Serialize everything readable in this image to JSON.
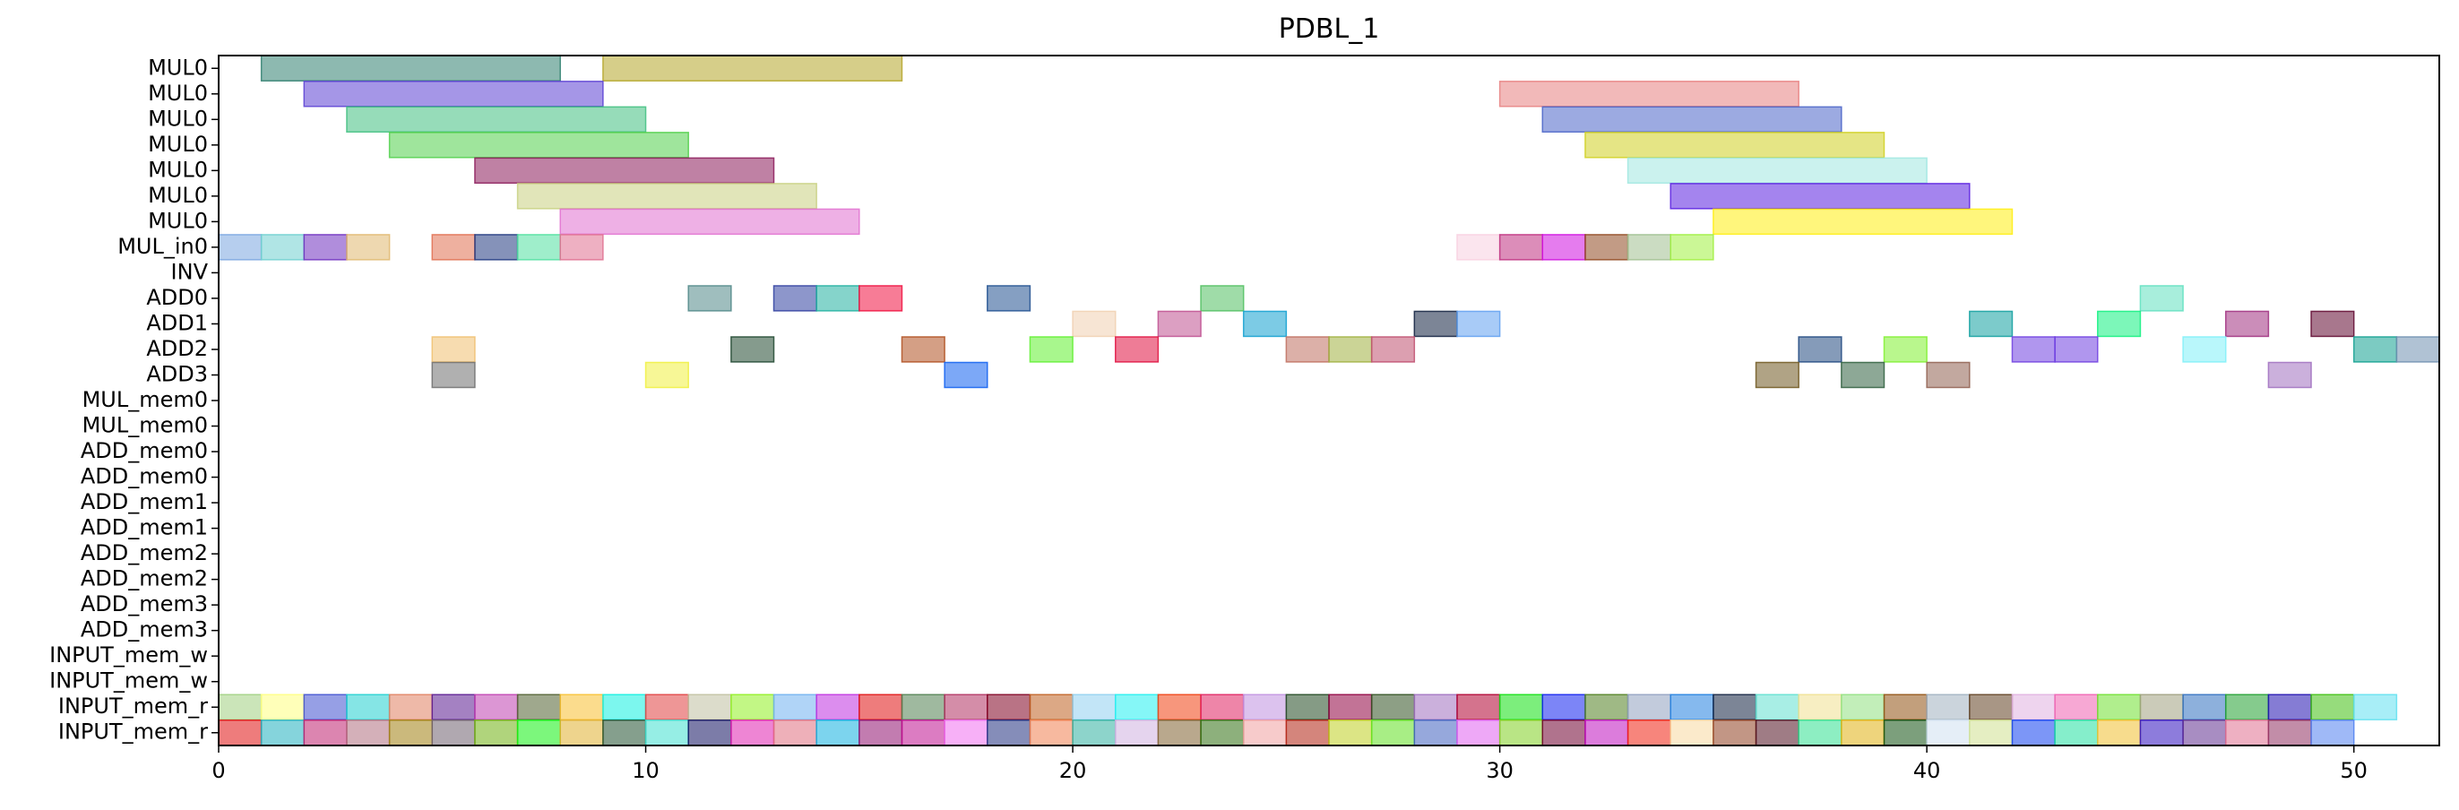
{
  "chart_data": {
    "type": "gantt",
    "title": "PDBL_1",
    "xlabel": "",
    "ylabel": "",
    "xlim": [
      0,
      52
    ],
    "x_ticks": [
      0,
      10,
      20,
      30,
      40,
      50
    ],
    "grid": false,
    "legend": false,
    "rows": [
      "MUL0",
      "MUL0",
      "MUL0",
      "MUL0",
      "MUL0",
      "MUL0",
      "MUL0",
      "MUL_in0",
      "INV",
      "ADD0",
      "ADD1",
      "ADD2",
      "ADD3",
      "MUL_mem0",
      "MUL_mem0",
      "ADD_mem0",
      "ADD_mem0",
      "ADD_mem1",
      "ADD_mem1",
      "ADD_mem2",
      "ADD_mem2",
      "ADD_mem3",
      "ADD_mem3",
      "INPUT_mem_w",
      "INPUT_mem_w",
      "INPUT_mem_r",
      "INPUT_mem_r"
    ],
    "palette": [
      "#7fb77e",
      "#c9a227",
      "#6a5acd",
      "#3cb371",
      "#e07b7b",
      "#4a69bd",
      "#d4c220",
      "#a4e3dc",
      "#8a2be2",
      "#ffe600",
      "#a0c0e0",
      "#b06bd0",
      "#e8c890",
      "#e08060",
      "#34508a",
      "#60e0b0",
      "#e090a8",
      "#508888",
      "#4a60b0",
      "#40c0b0",
      "#f03060",
      "#2060a0",
      "#f0d8c0",
      "#c070a0",
      "#20a0e0",
      "#203050",
      "#70b0f0",
      "#c08070",
      "#a0b040",
      "#c05070",
      "#80e040",
      "#104030",
      "#b06030",
      "#3080f0",
      "#e01040",
      "#a08040",
      "#50805c",
      "#a08880",
      "#a060c0",
      "#90f0f8",
      "#f0c040",
      "#e060e0"
    ],
    "tasks": [
      {
        "row": 0,
        "start": 1,
        "end": 8,
        "color": "#2f7f6f"
      },
      {
        "row": 0,
        "start": 9,
        "end": 16,
        "color": "#b4a528"
      },
      {
        "row": 1,
        "start": 2,
        "end": 9,
        "color": "#5b3fd3"
      },
      {
        "row": 1,
        "start": 30,
        "end": 37,
        "color": "#e88080"
      },
      {
        "row": 2,
        "start": 3,
        "end": 10,
        "color": "#40bf80"
      },
      {
        "row": 2,
        "start": 31,
        "end": 38,
        "color": "#4a64c8"
      },
      {
        "row": 3,
        "start": 4,
        "end": 11,
        "color": "#50d04a"
      },
      {
        "row": 3,
        "start": 32,
        "end": 39,
        "color": "#d0d020"
      },
      {
        "row": 4,
        "start": 6,
        "end": 13,
        "color": "#8b1a5a"
      },
      {
        "row": 4,
        "start": 33,
        "end": 40,
        "color": "#a0e8e0"
      },
      {
        "row": 5,
        "start": 7,
        "end": 14,
        "color": "#c8d080"
      },
      {
        "row": 5,
        "start": 34,
        "end": 41,
        "color": "#5a1fe0"
      },
      {
        "row": 6,
        "start": 8,
        "end": 15,
        "color": "#e070d0"
      },
      {
        "row": 6,
        "start": 35,
        "end": 42,
        "color": "#ffee10"
      },
      {
        "row": 7,
        "start": 0,
        "end": 1,
        "color": "#7aa6e0"
      },
      {
        "row": 7,
        "start": 1,
        "end": 2,
        "color": "#70d0d0"
      },
      {
        "row": 7,
        "start": 2,
        "end": 3,
        "color": "#7030c0"
      },
      {
        "row": 7,
        "start": 3,
        "end": 4,
        "color": "#e0b870"
      },
      {
        "row": 7,
        "start": 5,
        "end": 6,
        "color": "#e07050"
      },
      {
        "row": 7,
        "start": 6,
        "end": 7,
        "color": "#203880"
      },
      {
        "row": 7,
        "start": 7,
        "end": 8,
        "color": "#50e0a0"
      },
      {
        "row": 7,
        "start": 8,
        "end": 9,
        "color": "#e07090"
      },
      {
        "row": 7,
        "start": 29,
        "end": 30,
        "color": "#f8d0e0"
      },
      {
        "row": 7,
        "start": 30,
        "end": 31,
        "color": "#c03080"
      },
      {
        "row": 7,
        "start": 31,
        "end": 32,
        "color": "#d010e0"
      },
      {
        "row": 7,
        "start": 32,
        "end": 33,
        "color": "#904820"
      },
      {
        "row": 7,
        "start": 33,
        "end": 34,
        "color": "#a0c090"
      },
      {
        "row": 7,
        "start": 34,
        "end": 35,
        "color": "#a0f040"
      },
      {
        "row": 9,
        "start": 11,
        "end": 12,
        "color": "#508888"
      },
      {
        "row": 9,
        "start": 13,
        "end": 14,
        "color": "#3040a0"
      },
      {
        "row": 9,
        "start": 14,
        "end": 15,
        "color": "#20b0a0"
      },
      {
        "row": 9,
        "start": 15,
        "end": 16,
        "color": "#f01040"
      },
      {
        "row": 9,
        "start": 18,
        "end": 19,
        "color": "#205090"
      },
      {
        "row": 9,
        "start": 23,
        "end": 24,
        "color": "#50c060"
      },
      {
        "row": 9,
        "start": 45,
        "end": 46,
        "color": "#60e0c0"
      },
      {
        "row": 10,
        "start": 20,
        "end": 21,
        "color": "#f0d0b0"
      },
      {
        "row": 10,
        "start": 22,
        "end": 23,
        "color": "#c05090"
      },
      {
        "row": 10,
        "start": 24,
        "end": 25,
        "color": "#10a0d0"
      },
      {
        "row": 10,
        "start": 28,
        "end": 29,
        "color": "#102040"
      },
      {
        "row": 10,
        "start": 29,
        "end": 30,
        "color": "#60a0f0"
      },
      {
        "row": 10,
        "start": 41,
        "end": 42,
        "color": "#10a0a0"
      },
      {
        "row": 10,
        "start": 44,
        "end": 45,
        "color": "#10f080"
      },
      {
        "row": 10,
        "start": 47,
        "end": 48,
        "color": "#a03080"
      },
      {
        "row": 10,
        "start": 49,
        "end": 50,
        "color": "#600830"
      },
      {
        "row": 11,
        "start": 5,
        "end": 6,
        "color": "#f0c070"
      },
      {
        "row": 11,
        "start": 12,
        "end": 13,
        "color": "#204830"
      },
      {
        "row": 11,
        "start": 16,
        "end": 17,
        "color": "#b05020"
      },
      {
        "row": 11,
        "start": 19,
        "end": 20,
        "color": "#60f030"
      },
      {
        "row": 11,
        "start": 21,
        "end": 22,
        "color": "#e01040"
      },
      {
        "row": 11,
        "start": 25,
        "end": 26,
        "color": "#c07060"
      },
      {
        "row": 11,
        "start": 26,
        "end": 27,
        "color": "#a0b040"
      },
      {
        "row": 11,
        "start": 27,
        "end": 28,
        "color": "#c05070"
      },
      {
        "row": 11,
        "start": 37,
        "end": 38,
        "color": "#204880"
      },
      {
        "row": 11,
        "start": 39,
        "end": 40,
        "color": "#80f030"
      },
      {
        "row": 11,
        "start": 42,
        "end": 43,
        "color": "#7040e0"
      },
      {
        "row": 11,
        "start": 43,
        "end": 44,
        "color": "#7040e0"
      },
      {
        "row": 11,
        "start": 46,
        "end": 47,
        "color": "#80f0f8"
      },
      {
        "row": 11,
        "start": 50,
        "end": 51,
        "color": "#10a090"
      },
      {
        "row": 11,
        "start": 51,
        "end": 52,
        "color": "#7090b0"
      },
      {
        "row": 12,
        "start": 5,
        "end": 6,
        "color": "#707070"
      },
      {
        "row": 12,
        "start": 10,
        "end": 11,
        "color": "#f0f040"
      },
      {
        "row": 12,
        "start": 17,
        "end": 18,
        "color": "#1060f0"
      },
      {
        "row": 12,
        "start": 36,
        "end": 37,
        "color": "#705820"
      },
      {
        "row": 12,
        "start": 38,
        "end": 39,
        "color": "#306040"
      },
      {
        "row": 12,
        "start": 40,
        "end": 41,
        "color": "#906050"
      },
      {
        "row": 12,
        "start": 48,
        "end": 49,
        "color": "#a070c0"
      },
      {
        "row": 25,
        "start": 0,
        "end": 1,
        "color": "#a0d080"
      },
      {
        "row": 25,
        "start": 1,
        "end": 2,
        "color": "#ffff80"
      },
      {
        "row": 25,
        "start": 2,
        "end": 3,
        "color": "#4050d0"
      },
      {
        "row": 25,
        "start": 3,
        "end": 4,
        "color": "#20d0d0"
      },
      {
        "row": 25,
        "start": 4,
        "end": 5,
        "color": "#e08060"
      },
      {
        "row": 25,
        "start": 5,
        "end": 6,
        "color": "#5a1a90"
      },
      {
        "row": 25,
        "start": 6,
        "end": 7,
        "color": "#c040b0"
      },
      {
        "row": 25,
        "start": 7,
        "end": 8,
        "color": "#506030"
      },
      {
        "row": 25,
        "start": 8,
        "end": 9,
        "color": "#f8c030"
      },
      {
        "row": 25,
        "start": 9,
        "end": 10,
        "color": "#10f0e0"
      },
      {
        "row": 25,
        "start": 10,
        "end": 11,
        "color": "#e04040"
      },
      {
        "row": 25,
        "start": 11,
        "end": 12,
        "color": "#c0c0a0"
      },
      {
        "row": 25,
        "start": 12,
        "end": 13,
        "color": "#90f020"
      },
      {
        "row": 25,
        "start": 13,
        "end": 14,
        "color": "#70b0f0"
      },
      {
        "row": 25,
        "start": 14,
        "end": 15,
        "color": "#c030e0"
      },
      {
        "row": 25,
        "start": 15,
        "end": 16,
        "color": "#e01010"
      },
      {
        "row": 25,
        "start": 16,
        "end": 17,
        "color": "#508050"
      },
      {
        "row": 25,
        "start": 17,
        "end": 18,
        "color": "#b03060"
      },
      {
        "row": 25,
        "start": 18,
        "end": 19,
        "color": "#800020"
      },
      {
        "row": 25,
        "start": 19,
        "end": 20,
        "color": "#c06020"
      },
      {
        "row": 25,
        "start": 20,
        "end": 21,
        "color": "#90d0f0"
      },
      {
        "row": 25,
        "start": 21,
        "end": 22,
        "color": "#20f0f0"
      },
      {
        "row": 25,
        "start": 22,
        "end": 23,
        "color": "#f04010"
      },
      {
        "row": 25,
        "start": 23,
        "end": 24,
        "color": "#e02060"
      },
      {
        "row": 25,
        "start": 24,
        "end": 25,
        "color": "#c090e0"
      },
      {
        "row": 25,
        "start": 25,
        "end": 26,
        "color": "#204820"
      },
      {
        "row": 25,
        "start": 26,
        "end": 27,
        "color": "#900040"
      },
      {
        "row": 25,
        "start": 27,
        "end": 28,
        "color": "#305020"
      },
      {
        "row": 25,
        "start": 28,
        "end": 29,
        "color": "#a070c0"
      },
      {
        "row": 25,
        "start": 29,
        "end": 30,
        "color": "#b00030"
      },
      {
        "row": 25,
        "start": 30,
        "end": 31,
        "color": "#10e010"
      },
      {
        "row": 25,
        "start": 31,
        "end": 32,
        "color": "#1020f0"
      },
      {
        "row": 25,
        "start": 32,
        "end": 33,
        "color": "#508020"
      },
      {
        "row": 25,
        "start": 33,
        "end": 34,
        "color": "#90a0c0"
      },
      {
        "row": 25,
        "start": 34,
        "end": 35,
        "color": "#2080e0"
      },
      {
        "row": 25,
        "start": 35,
        "end": 36,
        "color": "#102040"
      },
      {
        "row": 25,
        "start": 36,
        "end": 37,
        "color": "#60e0d0"
      },
      {
        "row": 25,
        "start": 37,
        "end": 38,
        "color": "#f0e090"
      },
      {
        "row": 25,
        "start": 38,
        "end": 39,
        "color": "#90e080"
      },
      {
        "row": 25,
        "start": 39,
        "end": 40,
        "color": "#905010"
      },
      {
        "row": 25,
        "start": 40,
        "end": 41,
        "color": "#a0b0c0"
      },
      {
        "row": 25,
        "start": 41,
        "end": 42,
        "color": "#604020"
      },
      {
        "row": 25,
        "start": 42,
        "end": 43,
        "color": "#e0b0e0"
      },
      {
        "row": 25,
        "start": 43,
        "end": 44,
        "color": "#f060b0"
      },
      {
        "row": 25,
        "start": 44,
        "end": 45,
        "color": "#70e030"
      },
      {
        "row": 25,
        "start": 45,
        "end": 46,
        "color": "#a0a080"
      },
      {
        "row": 25,
        "start": 46,
        "end": 47,
        "color": "#3070c0"
      },
      {
        "row": 25,
        "start": 47,
        "end": 48,
        "color": "#20a030"
      },
      {
        "row": 25,
        "start": 48,
        "end": 49,
        "color": "#2010b0"
      },
      {
        "row": 25,
        "start": 49,
        "end": 50,
        "color": "#40c010"
      },
      {
        "row": 25,
        "start": 50,
        "end": 51,
        "color": "#60e0f0"
      },
      {
        "row": 26,
        "start": 0,
        "end": 1,
        "color": "#e01010"
      },
      {
        "row": 26,
        "start": 1,
        "end": 2,
        "color": "#20b0c0"
      },
      {
        "row": 26,
        "start": 2,
        "end": 3,
        "color": "#c02070"
      },
      {
        "row": 26,
        "start": 3,
        "end": 4,
        "color": "#b07080"
      },
      {
        "row": 26,
        "start": 4,
        "end": 5,
        "color": "#a08010"
      },
      {
        "row": 26,
        "start": 5,
        "end": 6,
        "color": "#706070"
      },
      {
        "row": 26,
        "start": 6,
        "end": 7,
        "color": "#70b010"
      },
      {
        "row": 26,
        "start": 7,
        "end": 8,
        "color": "#10f010"
      },
      {
        "row": 26,
        "start": 8,
        "end": 9,
        "color": "#e0b030"
      },
      {
        "row": 26,
        "start": 9,
        "end": 10,
        "color": "#205030"
      },
      {
        "row": 26,
        "start": 10,
        "end": 11,
        "color": "#40e0d0"
      },
      {
        "row": 26,
        "start": 11,
        "end": 12,
        "color": "#101060"
      },
      {
        "row": 26,
        "start": 12,
        "end": 13,
        "color": "#e020b0"
      },
      {
        "row": 26,
        "start": 13,
        "end": 14,
        "color": "#e07080"
      },
      {
        "row": 26,
        "start": 14,
        "end": 15,
        "color": "#10b0e0"
      },
      {
        "row": 26,
        "start": 15,
        "end": 16,
        "color": "#901070"
      },
      {
        "row": 26,
        "start": 16,
        "end": 17,
        "color": "#c01090"
      },
      {
        "row": 26,
        "start": 17,
        "end": 18,
        "color": "#f070f0"
      },
      {
        "row": 26,
        "start": 18,
        "end": 19,
        "color": "#203080"
      },
      {
        "row": 26,
        "start": 19,
        "end": 20,
        "color": "#f08050"
      },
      {
        "row": 26,
        "start": 20,
        "end": 21,
        "color": "#30b0a0"
      },
      {
        "row": 26,
        "start": 21,
        "end": 22,
        "color": "#d0b0e0"
      },
      {
        "row": 26,
        "start": 22,
        "end": 23,
        "color": "#806030"
      },
      {
        "row": 26,
        "start": 23,
        "end": 24,
        "color": "#307010"
      },
      {
        "row": 26,
        "start": 24,
        "end": 25,
        "color": "#f0a0a0"
      },
      {
        "row": 26,
        "start": 25,
        "end": 26,
        "color": "#b02010"
      },
      {
        "row": 26,
        "start": 26,
        "end": 27,
        "color": "#c0d020"
      },
      {
        "row": 26,
        "start": 27,
        "end": 28,
        "color": "#60e020"
      },
      {
        "row": 26,
        "start": 28,
        "end": 29,
        "color": "#4060c0"
      },
      {
        "row": 26,
        "start": 29,
        "end": 30,
        "color": "#e060f0"
      },
      {
        "row": 26,
        "start": 30,
        "end": 31,
        "color": "#80d020"
      },
      {
        "row": 26,
        "start": 31,
        "end": 32,
        "color": "#700030"
      },
      {
        "row": 26,
        "start": 32,
        "end": 33,
        "color": "#c010c0"
      },
      {
        "row": 26,
        "start": 33,
        "end": 34,
        "color": "#f02010"
      },
      {
        "row": 26,
        "start": 34,
        "end": 35,
        "color": "#f8d8a0"
      },
      {
        "row": 26,
        "start": 35,
        "end": 36,
        "color": "#904020"
      },
      {
        "row": 26,
        "start": 36,
        "end": 37,
        "color": "#501020"
      },
      {
        "row": 26,
        "start": 37,
        "end": 38,
        "color": "#30e090"
      },
      {
        "row": 26,
        "start": 38,
        "end": 39,
        "color": "#e0b010"
      },
      {
        "row": 26,
        "start": 39,
        "end": 40,
        "color": "#105010"
      },
      {
        "row": 26,
        "start": 40,
        "end": 41,
        "color": "#d0e0f0"
      },
      {
        "row": 26,
        "start": 41,
        "end": 42,
        "color": "#d0e090"
      },
      {
        "row": 26,
        "start": 42,
        "end": 43,
        "color": "#1040f0"
      },
      {
        "row": 26,
        "start": 43,
        "end": 44,
        "color": "#20e0a0"
      },
      {
        "row": 26,
        "start": 44,
        "end": 45,
        "color": "#f0c030"
      },
      {
        "row": 26,
        "start": 45,
        "end": 46,
        "color": "#3010c0"
      },
      {
        "row": 26,
        "start": 46,
        "end": 47,
        "color": "#603090"
      },
      {
        "row": 26,
        "start": 47,
        "end": 48,
        "color": "#e07090"
      },
      {
        "row": 26,
        "start": 48,
        "end": 49,
        "color": "#903060"
      },
      {
        "row": 26,
        "start": 49,
        "end": 50,
        "color": "#5080f0"
      }
    ]
  }
}
